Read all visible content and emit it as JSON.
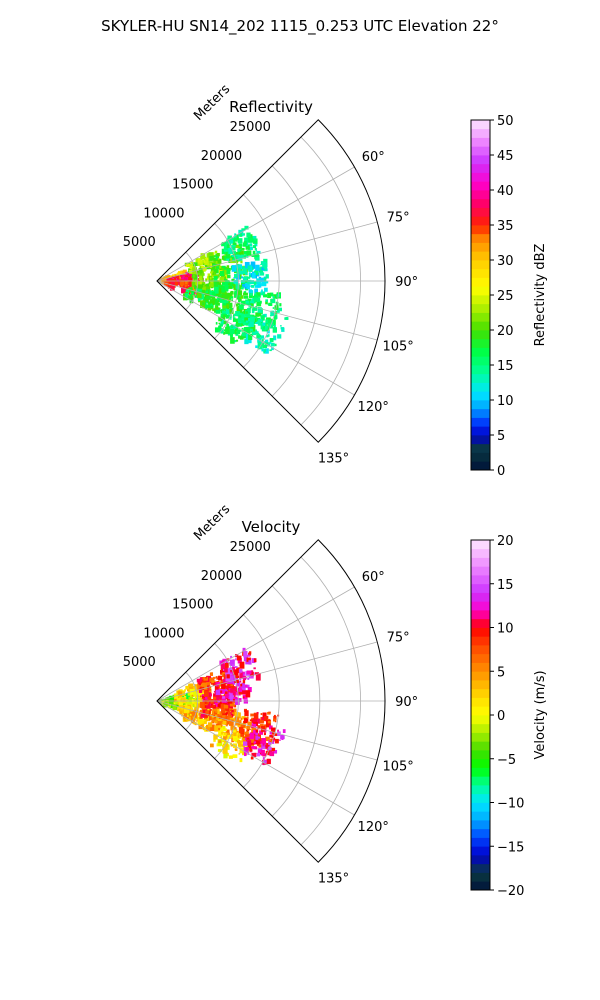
{
  "figure": {
    "suptitle": "SKYLER-HU  SN14_202  1115_0.253 UTC Elevation 22°"
  },
  "chart_data": [
    {
      "type": "polar-sector",
      "title": "Reflectivity",
      "radial_label": "Meters",
      "radial_ticks": [
        5000,
        10000,
        15000,
        20000,
        25000
      ],
      "radial_tick_labels": [
        "5000",
        "10000",
        "15000",
        "20000",
        "25000"
      ],
      "r_max": 28000,
      "azimuth_range_deg": [
        45,
        135
      ],
      "azimuth_ticks_deg": [
        60,
        75,
        90,
        105,
        120,
        135
      ],
      "azimuth_tick_labels": [
        "60°",
        "75°",
        "90°",
        "105°",
        "120°",
        "135°"
      ],
      "grid": true,
      "colorbar": {
        "label": "Reflectivity dBZ",
        "min": 0,
        "max": 50,
        "ticks": [
          0,
          5,
          10,
          15,
          20,
          25,
          30,
          35,
          40,
          45,
          50
        ],
        "tick_labels": [
          "0",
          "5",
          "10",
          "15",
          "20",
          "25",
          "30",
          "35",
          "40",
          "45",
          "50"
        ],
        "stops": [
          [
            0,
            "#00123a"
          ],
          [
            3,
            "#0a3a40"
          ],
          [
            5,
            "#0000cc"
          ],
          [
            7,
            "#0044ff"
          ],
          [
            9,
            "#00a8ff"
          ],
          [
            11,
            "#00e6ff"
          ],
          [
            14,
            "#00ff99"
          ],
          [
            17,
            "#00ff44"
          ],
          [
            20,
            "#44e000"
          ],
          [
            23,
            "#aaee00"
          ],
          [
            26,
            "#ffff00"
          ],
          [
            30,
            "#ffcc00"
          ],
          [
            33,
            "#ff8800"
          ],
          [
            35,
            "#ff2200"
          ],
          [
            38,
            "#ff0066"
          ],
          [
            41,
            "#ff00cc"
          ],
          [
            44,
            "#cc33ff"
          ],
          [
            47,
            "#ee88ff"
          ],
          [
            50,
            "#ffe8ff"
          ]
        ]
      },
      "echo_blobs": [
        {
          "az": 80,
          "r": 2500,
          "value": 30
        },
        {
          "az": 85,
          "r": 3500,
          "value": 38
        },
        {
          "az": 100,
          "r": 3200,
          "value": 35
        },
        {
          "az": 70,
          "r": 6000,
          "value": 22
        },
        {
          "az": 90,
          "r": 6500,
          "value": 22
        },
        {
          "az": 110,
          "r": 6000,
          "value": 18
        },
        {
          "az": 75,
          "r": 9000,
          "value": 20
        },
        {
          "az": 95,
          "r": 9000,
          "value": 18
        },
        {
          "az": 108,
          "r": 10000,
          "value": 18
        },
        {
          "az": 120,
          "r": 11000,
          "value": 16
        },
        {
          "az": 68,
          "r": 11000,
          "value": 15
        },
        {
          "az": 88,
          "r": 11500,
          "value": 12
        },
        {
          "az": 105,
          "r": 13500,
          "value": 16
        },
        {
          "az": 115,
          "r": 14500,
          "value": 14
        }
      ]
    },
    {
      "type": "polar-sector",
      "title": "Velocity",
      "radial_label": "Meters",
      "radial_ticks": [
        5000,
        10000,
        15000,
        20000,
        25000
      ],
      "radial_tick_labels": [
        "5000",
        "10000",
        "15000",
        "20000",
        "25000"
      ],
      "r_max": 28000,
      "azimuth_range_deg": [
        45,
        135
      ],
      "azimuth_ticks_deg": [
        60,
        75,
        90,
        105,
        120,
        135
      ],
      "azimuth_tick_labels": [
        "60°",
        "75°",
        "90°",
        "105°",
        "120°",
        "135°"
      ],
      "grid": true,
      "colorbar": {
        "label": "Velocity (m/s)",
        "min": -20,
        "max": 20,
        "ticks": [
          -20,
          -15,
          -10,
          -5,
          0,
          5,
          10,
          15,
          20
        ],
        "tick_labels": [
          "−20",
          "−15",
          "−10",
          "−5",
          "0",
          "5",
          "10",
          "15",
          "20"
        ],
        "stops": [
          [
            -20,
            "#00123a"
          ],
          [
            -18,
            "#0a3a40"
          ],
          [
            -16,
            "#0000cc"
          ],
          [
            -14,
            "#0044ff"
          ],
          [
            -12,
            "#00a8ff"
          ],
          [
            -10,
            "#00e6ff"
          ],
          [
            -8,
            "#00ff99"
          ],
          [
            -6,
            "#00ff00"
          ],
          [
            -4,
            "#44dd00"
          ],
          [
            -2,
            "#aaee00"
          ],
          [
            0,
            "#ffff00"
          ],
          [
            2,
            "#ffdd00"
          ],
          [
            4,
            "#ffaa00"
          ],
          [
            6,
            "#ff7700"
          ],
          [
            8,
            "#ff4400"
          ],
          [
            10,
            "#ff0000"
          ],
          [
            12,
            "#ff00cc"
          ],
          [
            14,
            "#cc33ff"
          ],
          [
            17,
            "#ee88ff"
          ],
          [
            20,
            "#ffe8ff"
          ]
        ]
      },
      "echo_blobs": [
        {
          "az": 85,
          "r": 2500,
          "value": -4
        },
        {
          "az": 100,
          "r": 2500,
          "value": -2
        },
        {
          "az": 75,
          "r": 4500,
          "value": 2
        },
        {
          "az": 95,
          "r": 4500,
          "value": 1
        },
        {
          "az": 112,
          "r": 5000,
          "value": 3
        },
        {
          "az": 72,
          "r": 7500,
          "value": 8
        },
        {
          "az": 88,
          "r": 7500,
          "value": 10
        },
        {
          "az": 100,
          "r": 7500,
          "value": 8
        },
        {
          "az": 82,
          "r": 9500,
          "value": 12
        },
        {
          "az": 108,
          "r": 9000,
          "value": 5
        },
        {
          "az": 120,
          "r": 10500,
          "value": 2
        },
        {
          "az": 68,
          "r": 11000,
          "value": 12
        },
        {
          "az": 105,
          "r": 13000,
          "value": 8
        },
        {
          "az": 112,
          "r": 14000,
          "value": 12
        }
      ]
    }
  ]
}
